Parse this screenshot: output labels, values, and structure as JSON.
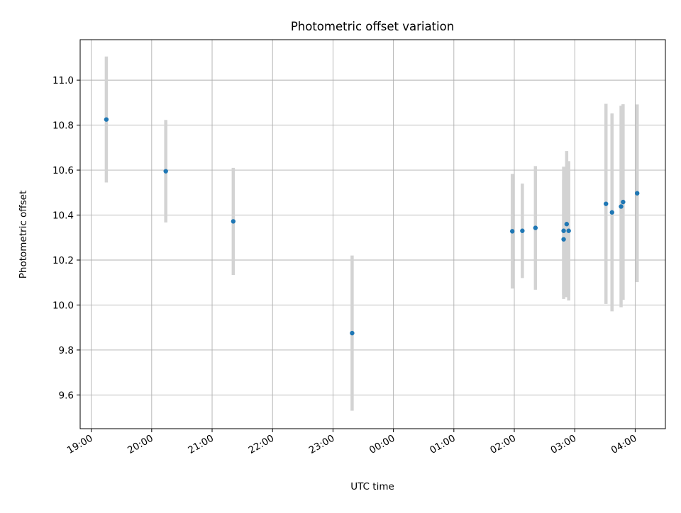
{
  "chart_data": {
    "type": "scatter",
    "title": "Photometric offset variation",
    "xlabel": "UTC time",
    "ylabel": "Photometric offset",
    "x_ticks": [
      "19:00",
      "20:00",
      "21:00",
      "22:00",
      "23:00",
      "00:00",
      "01:00",
      "02:00",
      "03:00",
      "04:00"
    ],
    "y_ticks": [
      "9.6",
      "9.8",
      "10.0",
      "10.2",
      "10.4",
      "10.6",
      "10.8",
      "11.0"
    ],
    "x_range": [
      "18:49",
      "04:30"
    ],
    "ylim": [
      9.45,
      11.18
    ],
    "grid": true,
    "point_color": "#1f77b4",
    "errorbar_color": "#d3d3d3",
    "points": [
      {
        "time": "19:15",
        "y": 10.825,
        "err": 0.28
      },
      {
        "time": "20:14",
        "y": 10.595,
        "err": 0.228
      },
      {
        "time": "21:21",
        "y": 10.372,
        "err": 0.238
      },
      {
        "time": "23:19",
        "y": 9.875,
        "err": 0.345
      },
      {
        "time": "01:58",
        "y": 10.328,
        "err": 0.255
      },
      {
        "time": "02:08",
        "y": 10.33,
        "err": 0.21
      },
      {
        "time": "02:21",
        "y": 10.343,
        "err": 0.275
      },
      {
        "time": "02:49",
        "y": 10.292,
        "err": 0.265
      },
      {
        "time": "02:49",
        "y": 10.33,
        "err": 0.285
      },
      {
        "time": "02:52",
        "y": 10.36,
        "err": 0.325
      },
      {
        "time": "02:54",
        "y": 10.33,
        "err": 0.31
      },
      {
        "time": "03:31",
        "y": 10.45,
        "err": 0.445
      },
      {
        "time": "03:37",
        "y": 10.412,
        "err": 0.44
      },
      {
        "time": "03:46",
        "y": 10.438,
        "err": 0.448
      },
      {
        "time": "03:48",
        "y": 10.458,
        "err": 0.435
      },
      {
        "time": "04:02",
        "y": 10.497,
        "err": 0.395
      }
    ]
  }
}
